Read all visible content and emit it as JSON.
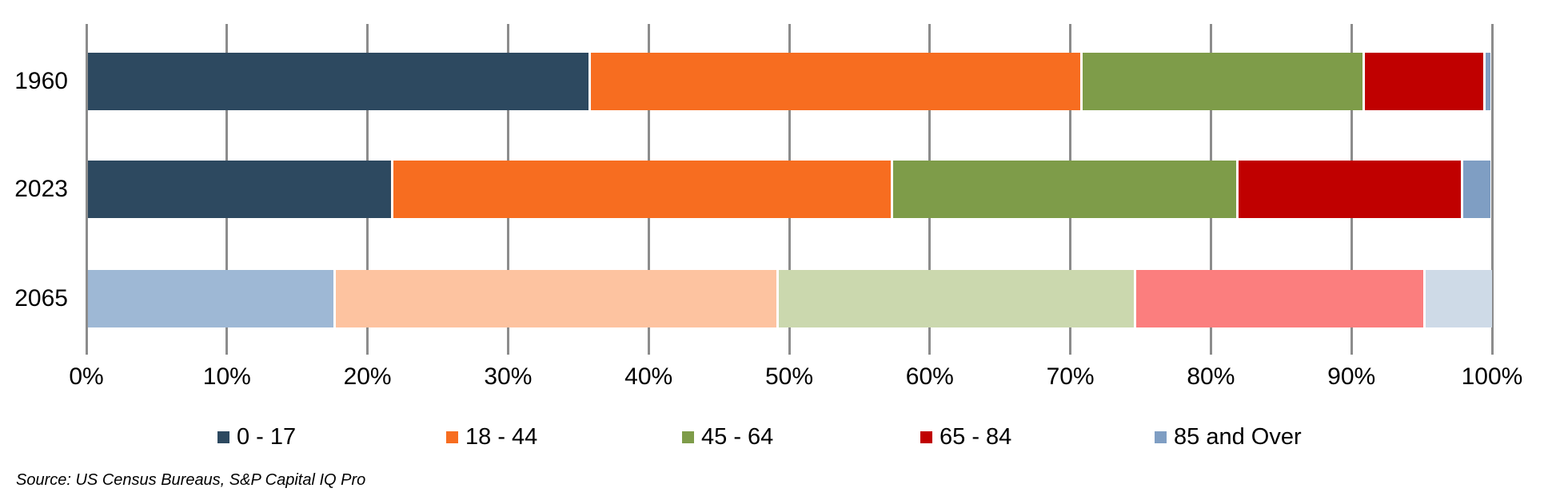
{
  "chart_data": {
    "type": "bar",
    "orientation": "horizontal",
    "stacked": true,
    "unit": "percent",
    "title": "",
    "xlabel": "",
    "ylabel": "",
    "xlim": [
      0,
      100
    ],
    "grid": true,
    "legend_position": "bottom",
    "categories": [
      "1960",
      "2023",
      "2065"
    ],
    "muted_category": "2065",
    "series": [
      {
        "name": "0 - 17",
        "color": "#2D4960",
        "muted_color": "#9EB8D5",
        "values": [
          35.7,
          21.7,
          17.6
        ]
      },
      {
        "name": "18 - 44",
        "color": "#F76D20",
        "muted_color": "#FDC3A0",
        "values": [
          35.0,
          35.5,
          31.5
        ]
      },
      {
        "name": "45 - 64",
        "color": "#7E9C49",
        "muted_color": "#CBD8AE",
        "values": [
          20.1,
          24.6,
          25.4
        ]
      },
      {
        "name": "65 - 84",
        "color": "#C00000",
        "muted_color": "#FB7E7E",
        "values": [
          8.6,
          16.0,
          20.6
        ]
      },
      {
        "name": "85 and Over",
        "color": "#7F9EC3",
        "muted_color": "#CEDAE7",
        "values": [
          0.5,
          2.1,
          4.9
        ]
      }
    ],
    "x_ticks": [
      "0%",
      "10%",
      "20%",
      "30%",
      "40%",
      "50%",
      "60%",
      "70%",
      "80%",
      "90%",
      "100%"
    ]
  },
  "legend": {
    "items": [
      {
        "label": "0 - 17",
        "color": "#2D4960"
      },
      {
        "label": "18 - 44",
        "color": "#F76D20"
      },
      {
        "label": "45 - 64",
        "color": "#7E9C49"
      },
      {
        "label": "65 - 84",
        "color": "#C00000"
      },
      {
        "label": "85 and Over",
        "color": "#7F9EC3"
      }
    ]
  },
  "source": {
    "text": "Source: US Census Bureaus, S&P Capital IQ Pro"
  },
  "colors": {
    "background": "#FFFFFF",
    "gridline": "#8C8C8C",
    "text": "#000000"
  }
}
